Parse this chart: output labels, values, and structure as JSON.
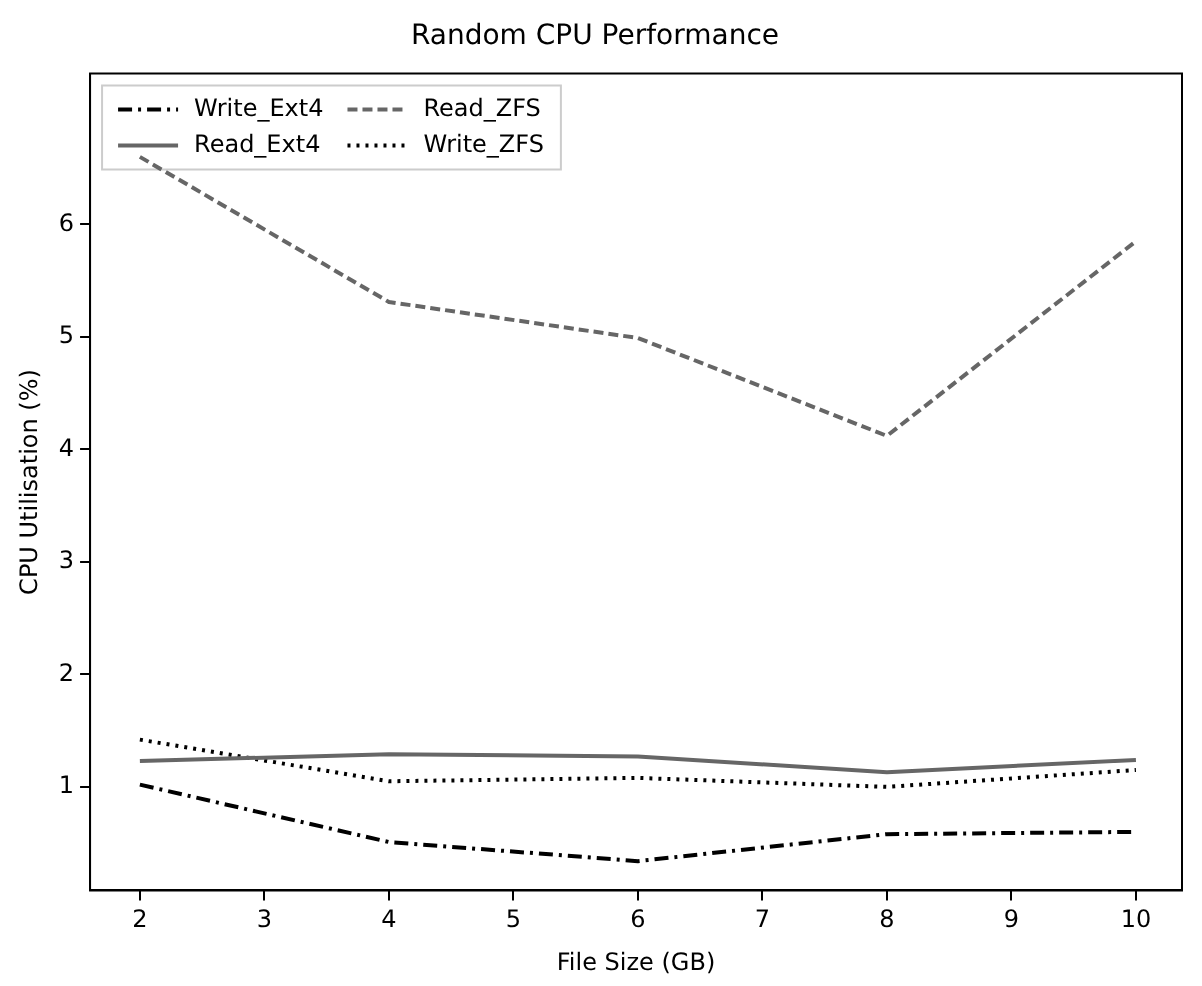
{
  "chart_data": {
    "type": "line",
    "title": "Random CPU Performance",
    "xlabel": "File Size (GB)",
    "ylabel": "CPU Utilisation (%)",
    "x": [
      2,
      4,
      6,
      8,
      10
    ],
    "series": [
      {
        "name": "Write_Ext4",
        "color": "#000000",
        "line_style": "dashdot",
        "values": [
          1.02,
          0.51,
          0.34,
          0.58,
          0.6
        ]
      },
      {
        "name": "Read_Ext4",
        "color": "#666666",
        "line_style": "solid",
        "values": [
          1.23,
          1.29,
          1.27,
          1.13,
          1.24
        ]
      },
      {
        "name": "Read_ZFS",
        "color": "#666666",
        "line_style": "dashed",
        "values": [
          6.6,
          5.31,
          4.99,
          4.12,
          5.85
        ]
      },
      {
        "name": "Write_ZFS",
        "color": "#000000",
        "line_style": "dotted",
        "values": [
          1.42,
          1.05,
          1.08,
          1.0,
          1.15
        ]
      }
    ],
    "xlim": [
      1.6,
      10.37
    ],
    "xticks": [
      2,
      3,
      4,
      5,
      6,
      7,
      8,
      9,
      10
    ],
    "ylim": [
      0.08,
      7.34
    ],
    "yticks": [
      1,
      2,
      3,
      4,
      5,
      6
    ],
    "grid": false,
    "legend": "top left",
    "marker": "none"
  }
}
